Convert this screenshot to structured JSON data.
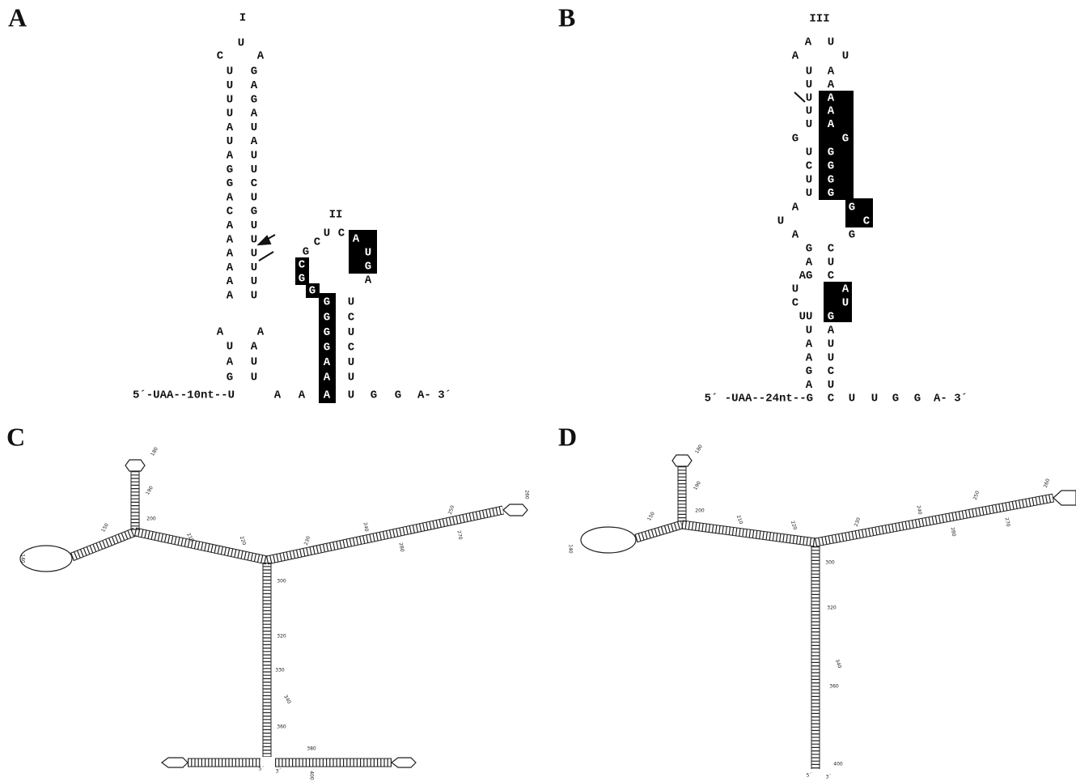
{
  "panel_a": {
    "label": "A",
    "stem_I_label": "I",
    "stem_II_label": "II",
    "loop_I": [
      "U",
      "C",
      "A"
    ],
    "stem_I": [
      [
        "U",
        "G"
      ],
      [
        "U",
        "A"
      ],
      [
        "U",
        "G"
      ],
      [
        "U",
        "A"
      ],
      [
        "A",
        "U"
      ],
      [
        "U",
        "A"
      ],
      [
        "A",
        "U"
      ],
      [
        "G",
        "U"
      ],
      [
        "G",
        "C"
      ],
      [
        "A",
        "U"
      ],
      [
        "C",
        "G"
      ],
      [
        "A",
        "U"
      ],
      [
        "A",
        "U"
      ],
      [
        "A",
        "U"
      ],
      [
        "A",
        "U"
      ],
      [
        "A",
        "U"
      ],
      [
        "A",
        "U"
      ]
    ],
    "bulge": [
      "A",
      "A"
    ],
    "stem_lower": [
      [
        "U",
        "A"
      ],
      [
        "A",
        "U"
      ],
      [
        "G",
        "U"
      ]
    ],
    "stem_II_loop": [
      "U",
      "C",
      "C",
      "G",
      "A",
      "U",
      "G",
      "A",
      "C",
      "G",
      "G"
    ],
    "stem_II_left": [
      "G",
      "G",
      "G",
      "G",
      "A",
      "A"
    ],
    "stem_II_right": [
      "U",
      "C",
      "U",
      "C",
      "U",
      "U"
    ],
    "sequence": [
      "5´-UAA--10nt--U",
      "A",
      "A",
      "A",
      "U",
      "G",
      "G",
      "A- 3´"
    ]
  },
  "panel_b": {
    "label": "B",
    "stem_label": "III",
    "loop_III": [
      "A",
      "U",
      "A",
      "U"
    ],
    "stem_upper": [
      [
        "U",
        "A"
      ],
      [
        "U",
        "A"
      ],
      [
        "U",
        "A"
      ],
      [
        "U",
        "A"
      ],
      [
        "U",
        "A"
      ]
    ],
    "bulge": [
      "G",
      "G"
    ],
    "stem_mid": [
      [
        "U",
        "G"
      ],
      [
        "C",
        "G"
      ],
      [
        "U",
        "G"
      ],
      [
        "U",
        "G"
      ]
    ],
    "internal": [
      "A",
      "G",
      "U",
      "C",
      "A",
      "G"
    ],
    "stem_lower": [
      [
        "G",
        "C"
      ],
      [
        "A",
        "U"
      ],
      [
        "AG",
        "C"
      ]
    ],
    "internal_2": [
      "U",
      "A",
      "C",
      "U",
      "UU",
      "G"
    ],
    "stem_base": [
      [
        "U",
        "A"
      ],
      [
        "A",
        "U"
      ],
      [
        "A",
        "U"
      ],
      [
        "G",
        "C"
      ],
      [
        "A",
        "U"
      ]
    ],
    "sequence": [
      "5´ -UAA--24nt--G",
      "C",
      "U",
      "U",
      "G",
      "G",
      "A- 3´"
    ]
  },
  "panel_c": {
    "label": "C",
    "numbers": [
      "180",
      "190",
      "200",
      "150",
      "140",
      "210",
      "220",
      "230",
      "240",
      "250",
      "260",
      "270",
      "280",
      "300",
      "320",
      "330",
      "340",
      "360",
      "380",
      "400",
      "5´",
      "3´"
    ]
  },
  "panel_d": {
    "label": "D",
    "numbers": [
      "180",
      "190",
      "200",
      "150",
      "140",
      "210",
      "220",
      "230",
      "240",
      "250",
      "260",
      "270",
      "280",
      "300",
      "320",
      "340",
      "360",
      "400",
      "5´",
      "3´"
    ]
  }
}
